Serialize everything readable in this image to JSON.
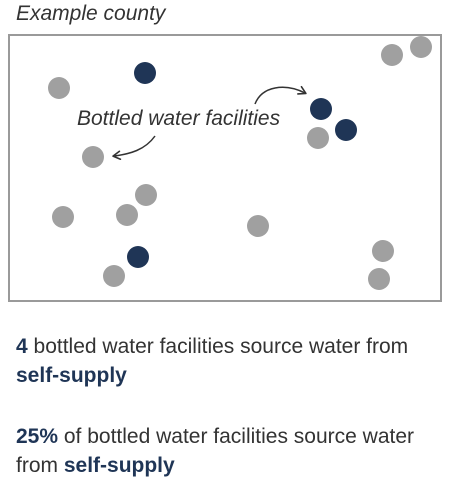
{
  "map": {
    "title": "Example county",
    "annotation": "Bottled water facilities",
    "colors": {
      "highlight": "#1f3556",
      "other": "#a0a0a0",
      "frame": "#9a9a9a",
      "text": "#333333",
      "arrow": "#333333"
    }
  },
  "stats": [
    {
      "value": "4",
      "text_a": " bottled water facilities source water from ",
      "emphasis": "self-supply"
    },
    {
      "value": "25%",
      "text_a": " of bottled water facilities source water from ",
      "emphasis": "self-supply"
    }
  ]
}
